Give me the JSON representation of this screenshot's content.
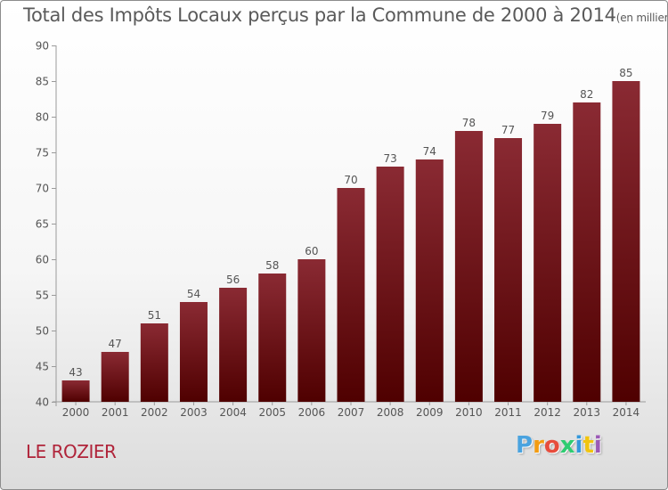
{
  "title": "Total des Impôts Locaux perçus par la Commune de 2000 à 2014",
  "title_unit": "(en milliers d'€)",
  "commune_name": "LE ROZIER",
  "logo": {
    "letters": [
      "P",
      "r",
      "o",
      "x",
      "i",
      "t",
      "i"
    ],
    "colors": [
      "#4aa3df",
      "#f39c12",
      "#e74c3c",
      "#2ecc71",
      "#3498db",
      "#f1c40f",
      "#9b59b6"
    ]
  },
  "chart_data": {
    "type": "bar",
    "categories": [
      "2000",
      "2001",
      "2002",
      "2003",
      "2004",
      "2005",
      "2006",
      "2007",
      "2008",
      "2009",
      "2010",
      "2011",
      "2012",
      "2013",
      "2014"
    ],
    "values": [
      43,
      47,
      51,
      54,
      56,
      58,
      60,
      70,
      73,
      74,
      78,
      77,
      79,
      82,
      85
    ],
    "ylim": [
      40,
      90
    ],
    "yticks": [
      40,
      45,
      50,
      55,
      60,
      65,
      70,
      75,
      80,
      85,
      90
    ],
    "grid": false,
    "bar_color_top": "#8a2a33",
    "bar_color_bottom": "#4f0000"
  }
}
